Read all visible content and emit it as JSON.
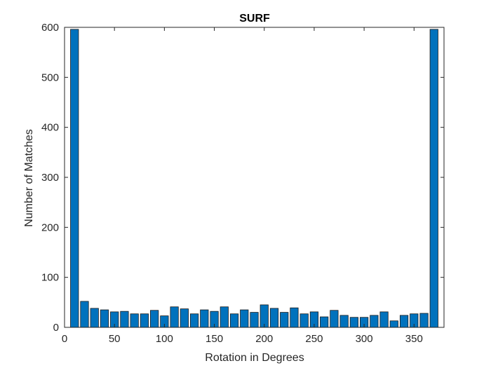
{
  "chart_data": {
    "type": "bar",
    "title": "SURF",
    "xlabel": "Rotation in Degrees",
    "ylabel": "Number of Matches",
    "xlim": [
      0,
      380
    ],
    "ylim": [
      0,
      600
    ],
    "xticks": [
      0,
      50,
      100,
      150,
      200,
      250,
      300,
      350
    ],
    "yticks": [
      0,
      100,
      200,
      300,
      400,
      500,
      600
    ],
    "bar_color": "#0072BD",
    "edge_color": "#1a1a1a",
    "grid": false,
    "x": [
      10,
      20,
      30,
      40,
      50,
      60,
      70,
      80,
      90,
      100,
      110,
      120,
      130,
      140,
      150,
      160,
      170,
      180,
      190,
      200,
      210,
      220,
      230,
      240,
      250,
      260,
      270,
      280,
      290,
      300,
      310,
      320,
      330,
      340,
      350,
      360,
      370
    ],
    "values": [
      596,
      52,
      38,
      35,
      31,
      32,
      27,
      27,
      34,
      23,
      41,
      37,
      27,
      35,
      32,
      41,
      27,
      35,
      30,
      45,
      38,
      30,
      39,
      27,
      31,
      21,
      34,
      24,
      20,
      20,
      24,
      31,
      13,
      24,
      27,
      28,
      596
    ]
  }
}
